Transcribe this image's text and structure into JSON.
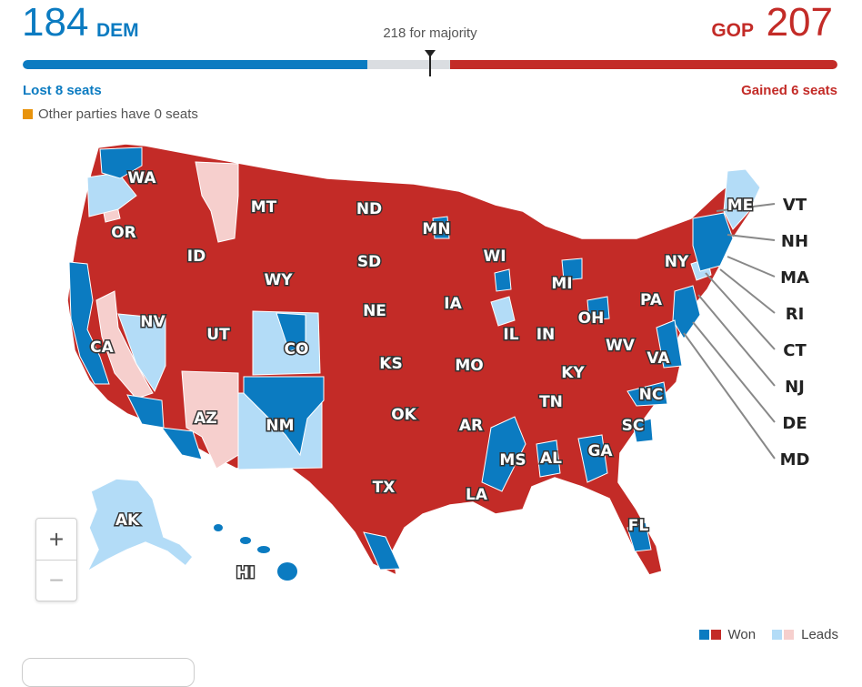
{
  "header": {
    "dem_count": "184",
    "dem_label": "DEM",
    "gop_label": "GOP",
    "gop_count": "207",
    "majority_text": "218 for majority",
    "dem_change": "Lost 8 seats",
    "gop_change": "Gained 6 seats",
    "other_parties": "Other parties have 0 seats"
  },
  "seats": {
    "dem": 184,
    "gop": 207,
    "majority": 218,
    "total": 435
  },
  "colors": {
    "dem_won": "#0b7bc1",
    "gop_won": "#c32b27",
    "dem_leads": "#b3dcf7",
    "gop_leads": "#f6cfcd",
    "other": "#e8930c",
    "undecided": "#dadde1"
  },
  "map": {
    "states": [
      "WA",
      "OR",
      "CA",
      "NV",
      "ID",
      "MT",
      "WY",
      "UT",
      "AZ",
      "CO",
      "NM",
      "ND",
      "SD",
      "NE",
      "KS",
      "OK",
      "TX",
      "MN",
      "IA",
      "MO",
      "AR",
      "LA",
      "WI",
      "IL",
      "MS",
      "MI",
      "IN",
      "KY",
      "TN",
      "AL",
      "OH",
      "WV",
      "GA",
      "FL",
      "SC",
      "NC",
      "VA",
      "PA",
      "NY",
      "ME",
      "AK",
      "HI"
    ],
    "callouts": [
      "VT",
      "NH",
      "MA",
      "RI",
      "CT",
      "NJ",
      "DE",
      "MD"
    ]
  },
  "zoom": {
    "in_label": "+",
    "out_label": "−"
  },
  "legend": {
    "won_label": "Won",
    "leads_label": "Leads"
  }
}
